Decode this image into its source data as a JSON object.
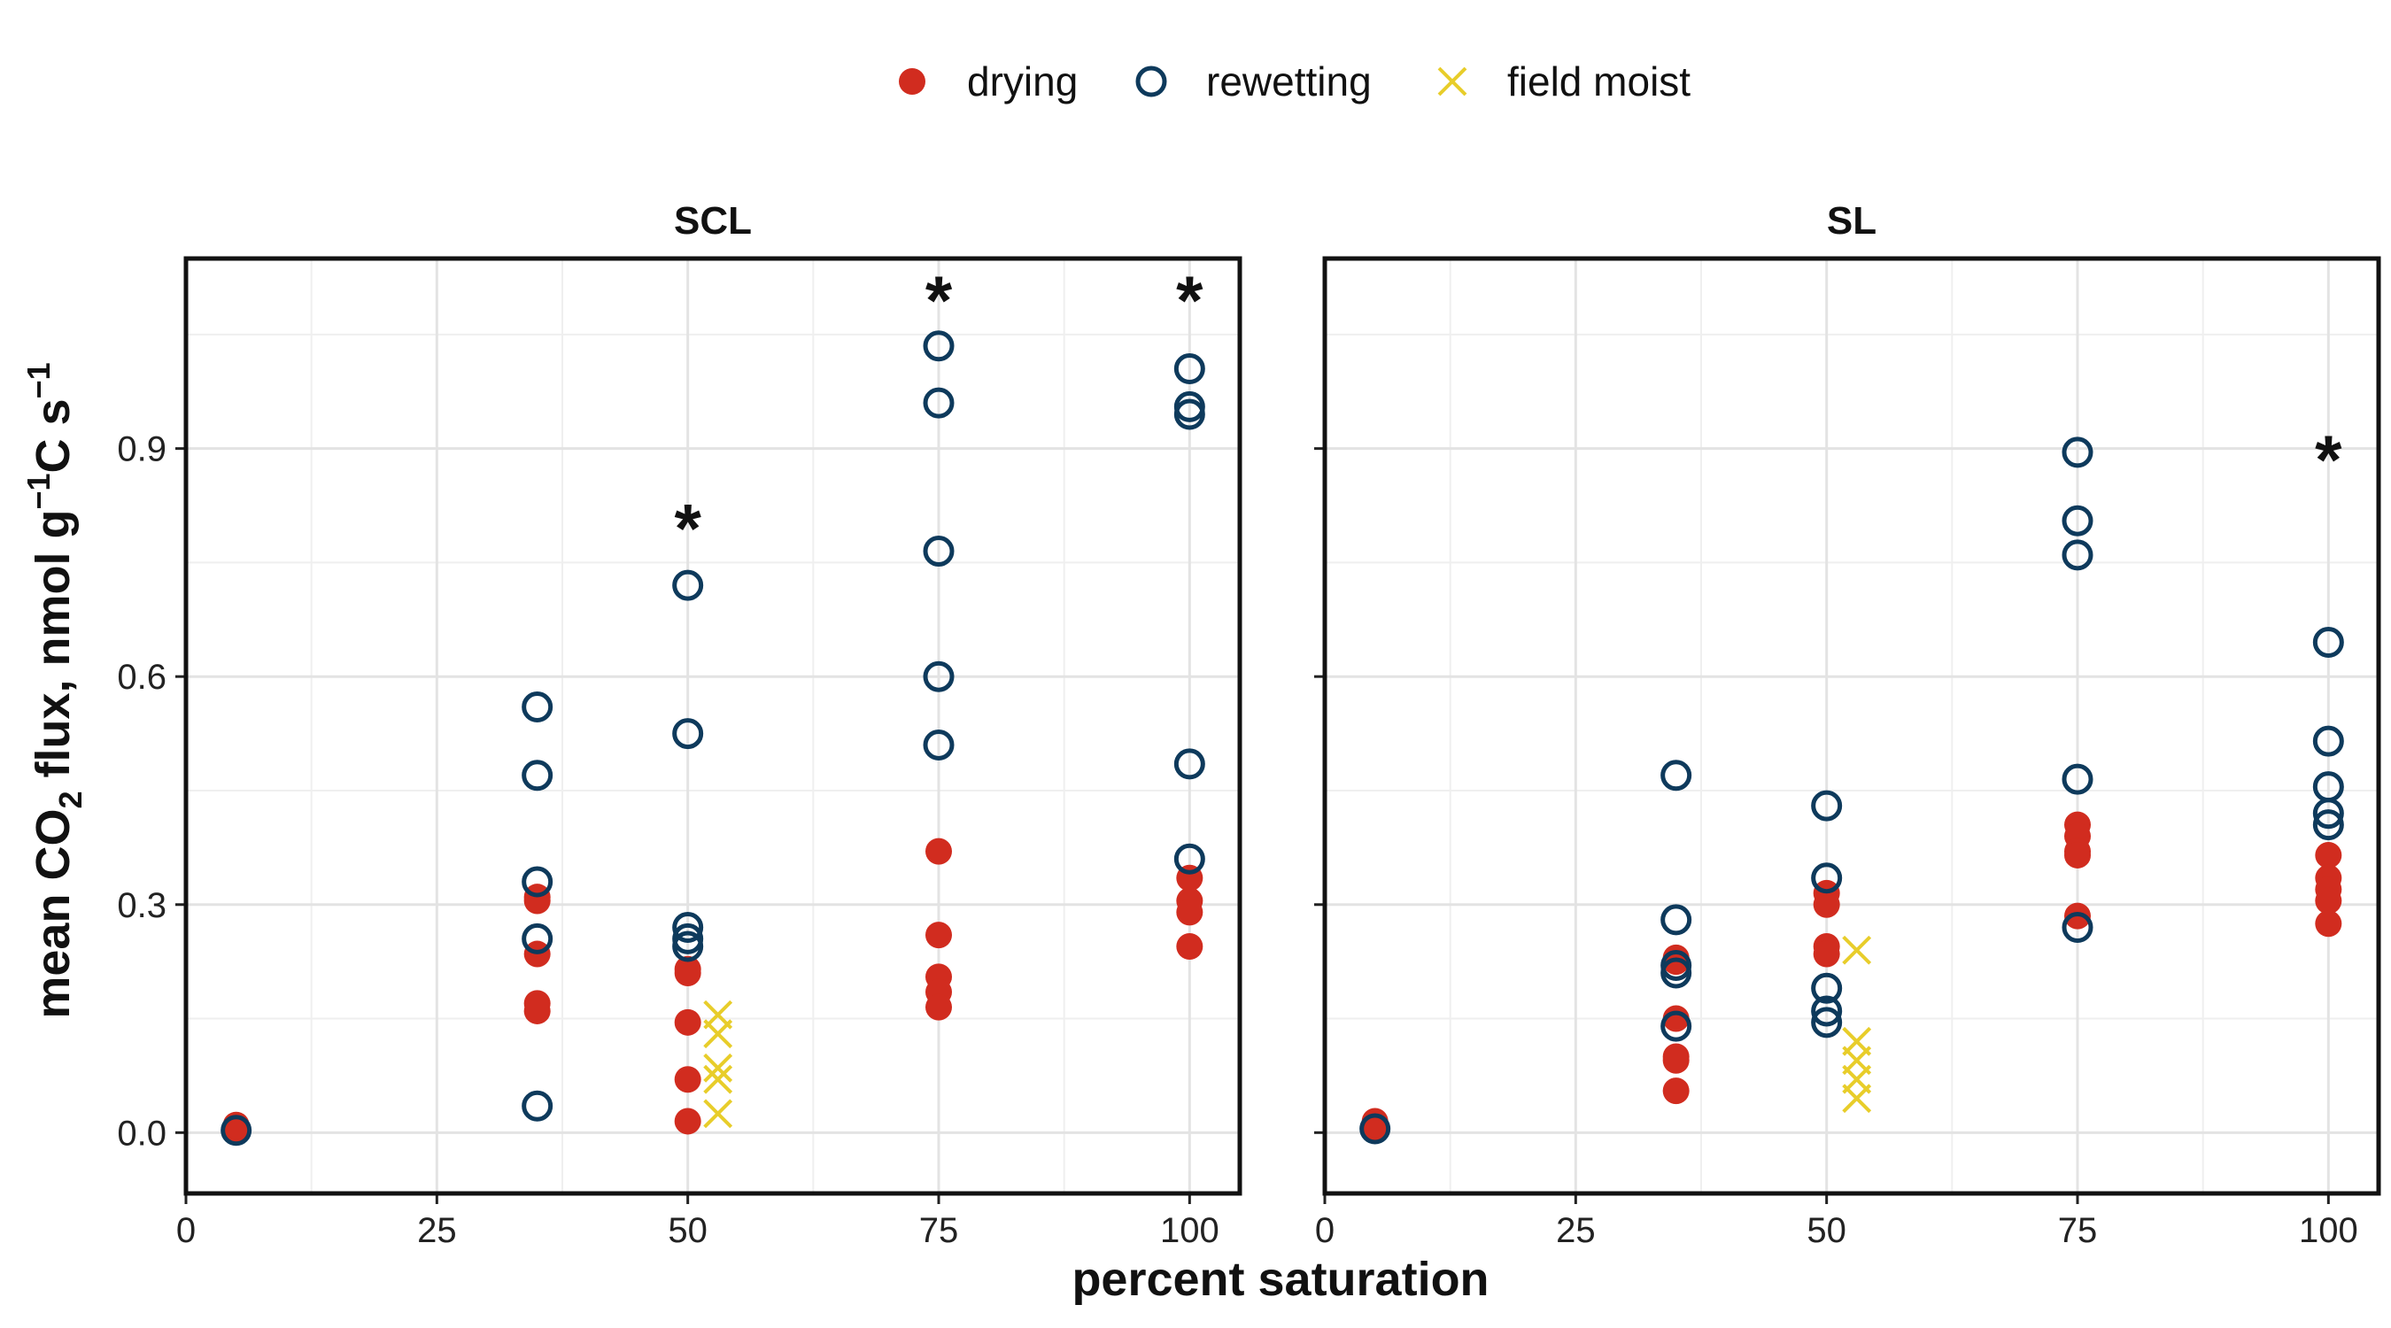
{
  "chart_data": {
    "type": "scatter",
    "xlabel": "percent saturation",
    "ylabel": {
      "prefix": "mean CO",
      "sub": "2",
      "mid1": " flux, nmol g",
      "sup1": "−1",
      "mid2": "C s",
      "sup2": "−1"
    },
    "xlim": [
      0,
      105
    ],
    "ylim": [
      -0.08,
      1.15
    ],
    "x_ticks": [
      0,
      25,
      50,
      75,
      100
    ],
    "y_ticks": [
      0.0,
      0.3,
      0.6,
      0.9
    ],
    "x_tick_labels": [
      "0",
      "25",
      "50",
      "75",
      "100"
    ],
    "y_tick_labels": [
      "0.0",
      "0.3",
      "0.6",
      "0.9"
    ],
    "grid": true,
    "legend_position": "top",
    "legend": [
      {
        "label": "drying",
        "shape": "filled-circle",
        "color": "#d12c1f"
      },
      {
        "label": "rewetting",
        "shape": "open-circle",
        "color": "#0e3a5c"
      },
      {
        "label": "field moist",
        "shape": "x",
        "color": "#e8cd2a"
      }
    ],
    "panels": [
      {
        "title": "SCL",
        "series": [
          {
            "name": "drying",
            "points": [
              [
                5,
                0.005
              ],
              [
                5,
                0.01
              ],
              [
                35,
                0.31
              ],
              [
                35,
                0.305
              ],
              [
                35,
                0.235
              ],
              [
                35,
                0.17
              ],
              [
                35,
                0.16
              ],
              [
                50,
                0.215
              ],
              [
                50,
                0.21
              ],
              [
                50,
                0.145
              ],
              [
                50,
                0.07
              ],
              [
                50,
                0.015
              ],
              [
                75,
                0.37
              ],
              [
                75,
                0.26
              ],
              [
                75,
                0.205
              ],
              [
                75,
                0.185
              ],
              [
                75,
                0.165
              ],
              [
                100,
                0.335
              ],
              [
                100,
                0.305
              ],
              [
                100,
                0.29
              ],
              [
                100,
                0.245
              ]
            ]
          },
          {
            "name": "rewetting",
            "points": [
              [
                5,
                0.003
              ],
              [
                35,
                0.56
              ],
              [
                35,
                0.47
              ],
              [
                35,
                0.33
              ],
              [
                35,
                0.255
              ],
              [
                35,
                0.035
              ],
              [
                50,
                0.72
              ],
              [
                50,
                0.525
              ],
              [
                50,
                0.27
              ],
              [
                50,
                0.255
              ],
              [
                50,
                0.245
              ],
              [
                75,
                1.035
              ],
              [
                75,
                0.96
              ],
              [
                75,
                0.765
              ],
              [
                75,
                0.6
              ],
              [
                75,
                0.51
              ],
              [
                100,
                1.005
              ],
              [
                100,
                0.955
              ],
              [
                100,
                0.945
              ],
              [
                100,
                0.485
              ],
              [
                100,
                0.36
              ]
            ]
          },
          {
            "name": "field moist",
            "points": [
              [
                53,
                0.155
              ],
              [
                53,
                0.13
              ],
              [
                53,
                0.085
              ],
              [
                53,
                0.07
              ],
              [
                53,
                0.025
              ]
            ]
          }
        ],
        "annotations": [
          {
            "text": "*",
            "x": 50,
            "y": 0.82
          },
          {
            "text": "*",
            "x": 75,
            "y": 1.12
          },
          {
            "text": "*",
            "x": 100,
            "y": 1.12
          }
        ]
      },
      {
        "title": "SL",
        "series": [
          {
            "name": "drying",
            "points": [
              [
                5,
                0.005
              ],
              [
                5,
                0.015
              ],
              [
                35,
                0.23
              ],
              [
                35,
                0.225
              ],
              [
                35,
                0.15
              ],
              [
                35,
                0.1
              ],
              [
                35,
                0.095
              ],
              [
                35,
                0.055
              ],
              [
                50,
                0.315
              ],
              [
                50,
                0.3
              ],
              [
                50,
                0.245
              ],
              [
                50,
                0.235
              ],
              [
                75,
                0.405
              ],
              [
                75,
                0.39
              ],
              [
                75,
                0.37
              ],
              [
                75,
                0.365
              ],
              [
                75,
                0.285
              ],
              [
                100,
                0.365
              ],
              [
                100,
                0.335
              ],
              [
                100,
                0.32
              ],
              [
                100,
                0.305
              ],
              [
                100,
                0.275
              ]
            ]
          },
          {
            "name": "rewetting",
            "points": [
              [
                5,
                0.005
              ],
              [
                35,
                0.47
              ],
              [
                35,
                0.28
              ],
              [
                35,
                0.22
              ],
              [
                35,
                0.21
              ],
              [
                35,
                0.14
              ],
              [
                50,
                0.43
              ],
              [
                50,
                0.335
              ],
              [
                50,
                0.19
              ],
              [
                50,
                0.16
              ],
              [
                50,
                0.145
              ],
              [
                75,
                0.895
              ],
              [
                75,
                0.805
              ],
              [
                75,
                0.76
              ],
              [
                75,
                0.465
              ],
              [
                75,
                0.27
              ],
              [
                100,
                0.645
              ],
              [
                100,
                0.515
              ],
              [
                100,
                0.455
              ],
              [
                100,
                0.42
              ],
              [
                100,
                0.405
              ]
            ]
          },
          {
            "name": "field moist",
            "points": [
              [
                53,
                0.24
              ],
              [
                53,
                0.12
              ],
              [
                53,
                0.095
              ],
              [
                53,
                0.07
              ],
              [
                53,
                0.045
              ]
            ]
          }
        ],
        "annotations": [
          {
            "text": "*",
            "x": 100,
            "y": 0.91
          }
        ]
      }
    ]
  }
}
